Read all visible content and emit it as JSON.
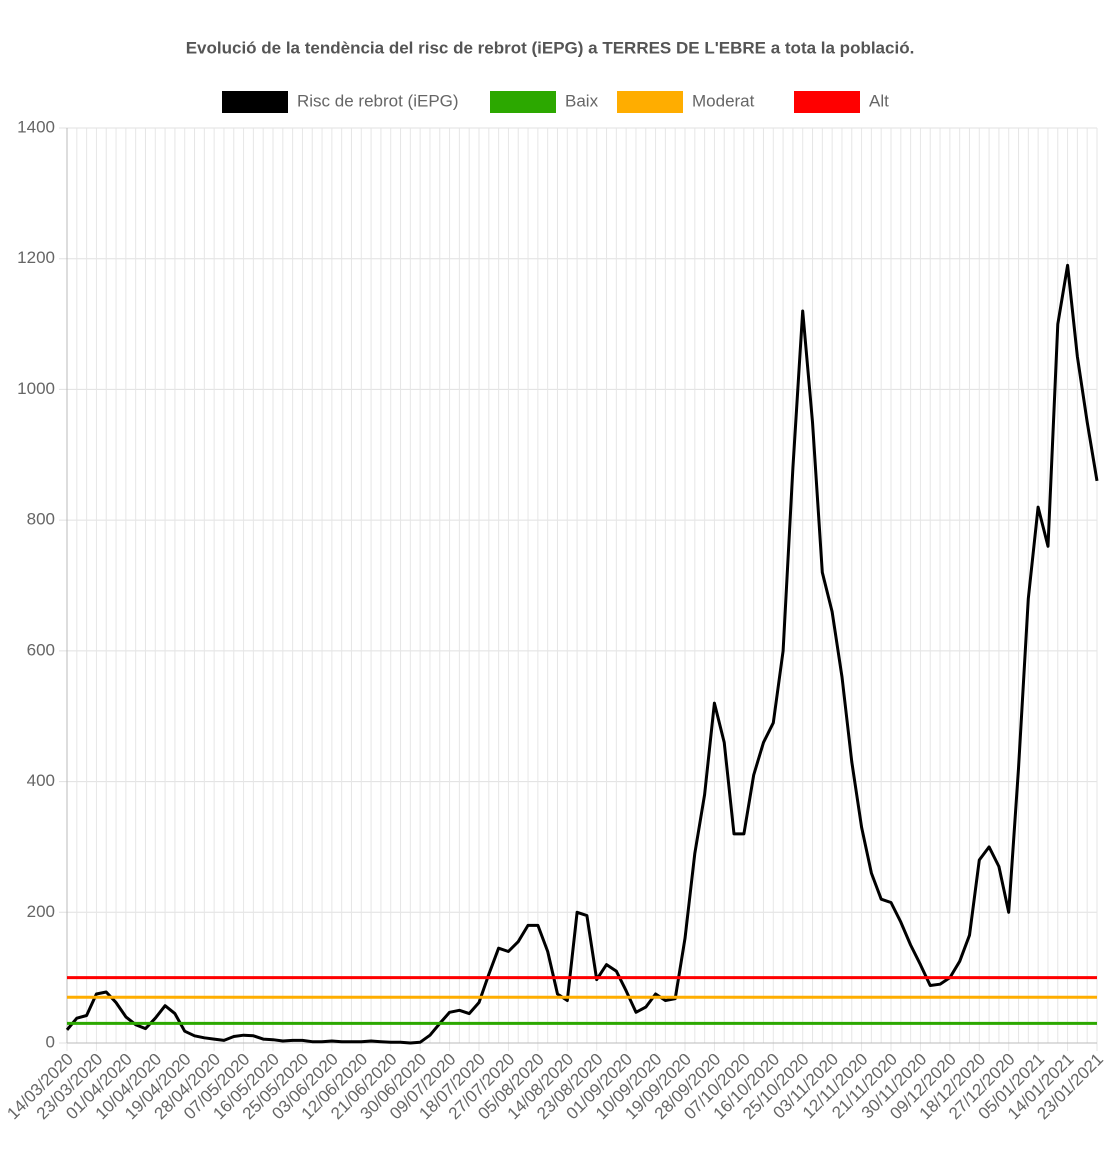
{
  "chart_data": {
    "type": "line",
    "title": "Evolució de la tendència del risc de rebrot (iEPG) a TERRES DE L'EBRE a tota la població.",
    "categories": [
      "14/03/2020",
      null,
      null,
      "23/03/2020",
      null,
      null,
      "01/04/2020",
      null,
      null,
      "10/04/2020",
      null,
      null,
      "19/04/2020",
      null,
      null,
      "28/04/2020",
      null,
      null,
      "07/05/2020",
      null,
      null,
      "16/05/2020",
      null,
      null,
      "25/05/2020",
      null,
      null,
      "03/06/2020",
      null,
      null,
      "12/06/2020",
      null,
      null,
      "21/06/2020",
      null,
      null,
      "30/06/2020",
      null,
      null,
      "09/07/2020",
      null,
      null,
      "18/07/2020",
      null,
      null,
      "27/07/2020",
      null,
      null,
      "05/08/2020",
      null,
      null,
      "14/08/2020",
      null,
      null,
      "23/08/2020",
      null,
      null,
      "01/09/2020",
      null,
      null,
      "10/09/2020",
      null,
      null,
      "19/09/2020",
      null,
      null,
      "28/09/2020",
      null,
      null,
      "07/10/2020",
      null,
      null,
      "16/10/2020",
      null,
      null,
      "25/10/2020",
      null,
      null,
      "03/11/2020",
      null,
      null,
      "12/11/2020",
      null,
      null,
      "21/11/2020",
      null,
      null,
      "30/11/2020",
      null,
      null,
      "09/12/2020",
      null,
      null,
      "18/12/2020",
      null,
      null,
      "27/12/2020",
      null,
      null,
      "05/01/2021",
      null,
      null,
      "14/01/2021",
      null,
      null,
      "23/01/2021"
    ],
    "series": [
      {
        "name": "Risc de rebrot (iEPG)",
        "color": "#000000",
        "values": [
          20,
          38,
          42,
          75,
          78,
          62,
          40,
          28,
          22,
          38,
          57,
          45,
          18,
          11,
          8,
          6,
          4,
          10,
          12,
          11,
          6,
          5,
          3,
          4,
          4,
          2,
          2,
          3,
          2,
          2,
          2,
          3,
          2,
          1,
          1,
          0,
          1,
          12,
          30,
          47,
          50,
          45,
          62,
          105,
          145,
          140,
          155,
          180,
          180,
          140,
          75,
          65,
          200,
          195,
          97,
          120,
          110,
          80,
          47,
          55,
          75,
          65,
          68,
          160,
          290,
          380,
          520,
          460,
          320,
          320,
          410,
          460,
          490,
          600,
          880,
          1120,
          950,
          720,
          660,
          560,
          430,
          330,
          260,
          220,
          215,
          185,
          150,
          120,
          88,
          90,
          100,
          125,
          165,
          280,
          300,
          270,
          200,
          420,
          680,
          820,
          760,
          1100,
          1190,
          1050,
          950,
          860
        ]
      },
      {
        "name": "Baix",
        "color": "#2ca800",
        "value": 30
      },
      {
        "name": "Moderat",
        "color": "#ffad00",
        "value": 70
      },
      {
        "name": "Alt",
        "color": "#ff0000",
        "value": 100
      }
    ],
    "ylim": [
      0,
      1400
    ],
    "yticks": [
      0,
      200,
      400,
      600,
      800,
      1000,
      1200,
      1400
    ],
    "grid": true
  }
}
